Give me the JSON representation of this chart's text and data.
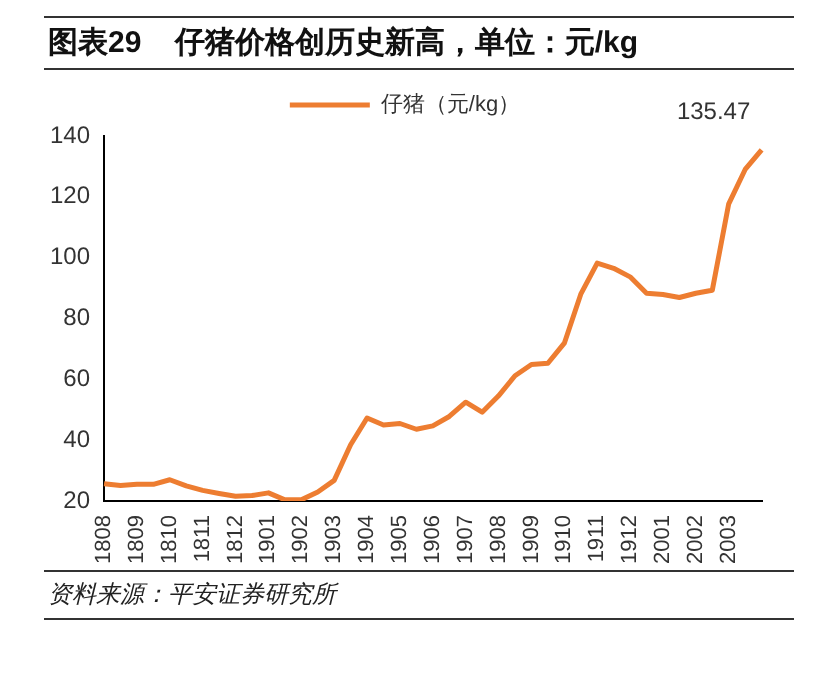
{
  "chart_data": {
    "type": "line",
    "title": "图表29    仔猪价格创历史新高，单位：元/kg",
    "categories": [
      "1808",
      null,
      "1809",
      null,
      "1810",
      null,
      "1811",
      null,
      "1812",
      null,
      "1901",
      null,
      "1902",
      null,
      "1903",
      null,
      "1904",
      null,
      "1905",
      null,
      "1906",
      null,
      "1907",
      null,
      "1908",
      null,
      "1909",
      null,
      "1910",
      null,
      "1911",
      null,
      "1912",
      null,
      "2001",
      null,
      "2002",
      null,
      "2003",
      null,
      null
    ],
    "series": [
      {
        "name": "仔猪（元/kg）",
        "color": "#ed7d31",
        "values": [
          25.7,
          25.1,
          25.5,
          25.5,
          27,
          25,
          23.5,
          22.5,
          21.6,
          21.8,
          22.7,
          20.4,
          20.4,
          23,
          26.8,
          38.5,
          47.3,
          45,
          45.5,
          43.6,
          44.7,
          47.8,
          52.5,
          49.2,
          54.6,
          61.2,
          64.9,
          65.3,
          71.9,
          88,
          98.2,
          96.5,
          93.7,
          88.3,
          87.9,
          86.9,
          88.3,
          89.3,
          117.7,
          129,
          135.47
        ]
      }
    ],
    "ylim": [
      20,
      140
    ],
    "yticks": [
      20,
      40,
      60,
      80,
      100,
      120,
      140
    ],
    "grid": false,
    "legend": "top",
    "marker": "none",
    "line_style": "solid",
    "annotations": [
      "135.47",
      "资料来源：平安证券研究所"
    ]
  }
}
